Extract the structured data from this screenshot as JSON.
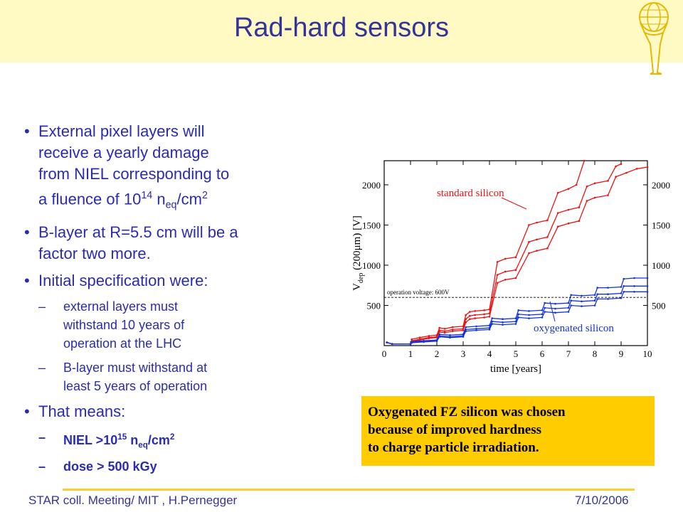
{
  "slide": {
    "title": "Rad-hard sensors",
    "bullets": {
      "b1": {
        "bullet": "•",
        "l1": "External pixel layers will",
        "l2": "receive a yearly damage",
        "l3": "from NIEL corresponding to",
        "l4_pre": "a fluence of 10",
        "l4_sup": "14",
        "l4_mid": " n",
        "l4_sub": "eq",
        "l4_post": "/cm",
        "l4_sup2": "2"
      },
      "b2": {
        "bullet": "•",
        "l1": "B-layer at R=5.5 cm will be a",
        "l2": "factor two more."
      },
      "b3": {
        "bullet": "•",
        "l1": "Initial specification were:"
      },
      "s1": {
        "dash": "–",
        "l1": "external layers must",
        "l2": "withstand 10 years of",
        "l3": "operation at the LHC"
      },
      "s2": {
        "dash": "–",
        "l1": "B-layer must withstand at",
        "l2": "least 5 years of operation"
      },
      "b4": {
        "bullet": "•",
        "l1": "That means:"
      },
      "s3": {
        "dash": "–",
        "pre": "NIEL >10",
        "sup": "15",
        "mid": " n",
        "sub": "eq",
        "post": "/cm",
        "sup2": "2"
      },
      "s4": {
        "dash": "–",
        "l1": "dose > 500 kGy"
      }
    },
    "caption": {
      "l1": "Oxygenated FZ silicon was chosen",
      "l2": "because of improved hardness",
      "l3": "to charge particle irradiation."
    },
    "footer": {
      "left": "STAR coll. Meeting/ MIT , H.Pernegger",
      "right": "7/10/2006"
    },
    "colors": {
      "title": "#33339a",
      "text": "#2b2bb0",
      "header_band": "#fff9c4",
      "caption_bg": "#ffcc00",
      "footer_line": "#ffcc33",
      "std_series": "#ee1111",
      "oxy_series": "#1133dd"
    }
  },
  "chart_data": {
    "type": "line",
    "xlabel": "time [years]",
    "ylabel_main": "V",
    "ylabel_sub": "dep",
    "ylabel_rest": " (200μm) [V]",
    "xlim": [
      0,
      10
    ],
    "ylim": [
      0,
      2300
    ],
    "xticks": [
      "0",
      "1",
      "2",
      "3",
      "4",
      "5",
      "6",
      "7",
      "8",
      "9",
      "10"
    ],
    "yticks": [
      "500",
      "1000",
      "1500",
      "2000"
    ],
    "grid": false,
    "reference_line": {
      "label": "operation voltage: 600V",
      "y": 600
    },
    "series": [
      {
        "name": "standard silicon",
        "group": "standard",
        "points": [
          [
            0.1,
            40
          ],
          [
            0.3,
            20
          ],
          [
            1,
            20
          ],
          [
            1.05,
            80
          ],
          [
            1.35,
            100
          ],
          [
            1.7,
            120
          ],
          [
            2,
            130
          ],
          [
            2.1,
            220
          ],
          [
            2.3,
            210
          ],
          [
            2.6,
            230
          ],
          [
            3,
            240
          ],
          [
            3.1,
            380
          ],
          [
            3.25,
            420
          ],
          [
            3.45,
            430
          ],
          [
            3.8,
            440
          ],
          [
            4,
            450
          ],
          [
            4.3,
            1040
          ],
          [
            4.6,
            1080
          ],
          [
            5,
            1100
          ],
          [
            5.5,
            1500
          ],
          [
            5.8,
            1530
          ],
          [
            6.2,
            1560
          ],
          [
            6.6,
            1900
          ],
          [
            7,
            1950
          ],
          [
            7.3,
            2000
          ],
          [
            7.6,
            2300
          ]
        ]
      },
      {
        "name": "",
        "group": "standard",
        "points": [
          [
            0.1,
            40
          ],
          [
            0.3,
            20
          ],
          [
            1,
            20
          ],
          [
            1.05,
            60
          ],
          [
            1.35,
            80
          ],
          [
            1.7,
            100
          ],
          [
            2,
            110
          ],
          [
            2.1,
            190
          ],
          [
            2.3,
            180
          ],
          [
            2.6,
            200
          ],
          [
            3,
            210
          ],
          [
            3.1,
            330
          ],
          [
            3.25,
            370
          ],
          [
            3.45,
            380
          ],
          [
            3.8,
            390
          ],
          [
            4,
            400
          ],
          [
            4.3,
            880
          ],
          [
            4.6,
            920
          ],
          [
            5,
            940
          ],
          [
            5.5,
            1290
          ],
          [
            5.8,
            1320
          ],
          [
            6.2,
            1350
          ],
          [
            6.6,
            1650
          ],
          [
            7,
            1690
          ],
          [
            7.4,
            1720
          ],
          [
            7.7,
            1980
          ],
          [
            8,
            2020
          ],
          [
            8.5,
            2050
          ],
          [
            8.8,
            2230
          ],
          [
            9,
            2260
          ]
        ]
      },
      {
        "name": "",
        "group": "standard",
        "points": [
          [
            0.1,
            40
          ],
          [
            0.3,
            20
          ],
          [
            1,
            20
          ],
          [
            1.05,
            50
          ],
          [
            1.35,
            70
          ],
          [
            1.7,
            90
          ],
          [
            2,
            100
          ],
          [
            2.1,
            170
          ],
          [
            2.3,
            160
          ],
          [
            2.6,
            180
          ],
          [
            3,
            190
          ],
          [
            3.1,
            290
          ],
          [
            3.25,
            330
          ],
          [
            3.45,
            340
          ],
          [
            3.8,
            350
          ],
          [
            4,
            360
          ],
          [
            4.3,
            780
          ],
          [
            4.6,
            820
          ],
          [
            5,
            840
          ],
          [
            5.5,
            1150
          ],
          [
            5.8,
            1180
          ],
          [
            6.2,
            1210
          ],
          [
            6.6,
            1480
          ],
          [
            7,
            1520
          ],
          [
            7.4,
            1550
          ],
          [
            7.7,
            1800
          ],
          [
            8,
            1840
          ],
          [
            8.5,
            1870
          ],
          [
            8.8,
            2100
          ],
          [
            9.2,
            2150
          ],
          [
            9.6,
            2200
          ],
          [
            10,
            2220
          ]
        ]
      },
      {
        "name": "oxygenated silicon",
        "group": "oxygenated",
        "points": [
          [
            0.1,
            40
          ],
          [
            0.3,
            20
          ],
          [
            1,
            20
          ],
          [
            1.05,
            40
          ],
          [
            1.5,
            50
          ],
          [
            2,
            60
          ],
          [
            2.1,
            120
          ],
          [
            2.5,
            110
          ],
          [
            3,
            120
          ],
          [
            3.1,
            200
          ],
          [
            3.5,
            210
          ],
          [
            4,
            220
          ],
          [
            4.1,
            300
          ],
          [
            4.5,
            290
          ],
          [
            5,
            300
          ],
          [
            5.1,
            390
          ],
          [
            5.5,
            380
          ],
          [
            6,
            390
          ],
          [
            6.1,
            470
          ],
          [
            6.5,
            460
          ],
          [
            7,
            470
          ],
          [
            7.1,
            560
          ],
          [
            7.5,
            550
          ],
          [
            8,
            560
          ],
          [
            8.1,
            640
          ],
          [
            8.5,
            640
          ],
          [
            9,
            650
          ],
          [
            9.1,
            740
          ],
          [
            9.5,
            740
          ],
          [
            10,
            740
          ]
        ]
      },
      {
        "name": "",
        "group": "oxygenated",
        "points": [
          [
            0.1,
            40
          ],
          [
            0.3,
            20
          ],
          [
            1,
            20
          ],
          [
            1.05,
            50
          ],
          [
            1.5,
            60
          ],
          [
            2,
            70
          ],
          [
            2.1,
            140
          ],
          [
            2.5,
            130
          ],
          [
            3,
            140
          ],
          [
            3.1,
            230
          ],
          [
            3.5,
            240
          ],
          [
            4,
            250
          ],
          [
            4.1,
            340
          ],
          [
            4.5,
            330
          ],
          [
            5,
            340
          ],
          [
            5.1,
            440
          ],
          [
            5.5,
            430
          ],
          [
            6,
            440
          ],
          [
            6.1,
            530
          ],
          [
            6.5,
            520
          ],
          [
            7,
            530
          ],
          [
            7.1,
            630
          ],
          [
            7.5,
            620
          ],
          [
            8,
            630
          ],
          [
            8.1,
            720
          ],
          [
            8.5,
            720
          ],
          [
            9,
            730
          ],
          [
            9.1,
            830
          ],
          [
            9.5,
            840
          ],
          [
            10,
            840
          ]
        ]
      },
      {
        "name": "",
        "group": "oxygenated",
        "points": [
          [
            0.1,
            40
          ],
          [
            0.3,
            20
          ],
          [
            1,
            20
          ],
          [
            1.05,
            35
          ],
          [
            1.5,
            45
          ],
          [
            2,
            55
          ],
          [
            2.1,
            110
          ],
          [
            2.5,
            100
          ],
          [
            3,
            110
          ],
          [
            3.1,
            180
          ],
          [
            3.5,
            190
          ],
          [
            4,
            200
          ],
          [
            4.1,
            270
          ],
          [
            4.5,
            260
          ],
          [
            5,
            270
          ],
          [
            5.1,
            350
          ],
          [
            5.5,
            340
          ],
          [
            6,
            350
          ],
          [
            6.1,
            420
          ],
          [
            6.5,
            410
          ],
          [
            7,
            420
          ],
          [
            7.1,
            500
          ],
          [
            7.5,
            490
          ],
          [
            8,
            500
          ],
          [
            8.1,
            580
          ],
          [
            8.5,
            580
          ],
          [
            9,
            590
          ],
          [
            9.1,
            670
          ],
          [
            9.5,
            670
          ],
          [
            10,
            670
          ]
        ]
      }
    ]
  }
}
